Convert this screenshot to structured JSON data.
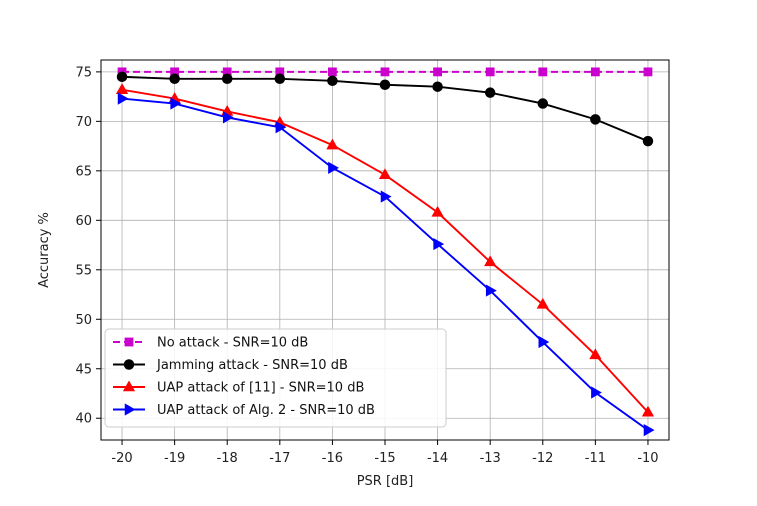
{
  "chart_data": {
    "type": "line",
    "title": "",
    "xlabel": "PSR [dB]",
    "ylabel": "Accuracy %",
    "x": [
      -20,
      -19,
      -18,
      -17,
      -16,
      -15,
      -14,
      -13,
      -12,
      -11,
      -10
    ],
    "xlim": [
      -20.4,
      -9.6
    ],
    "ylim": [
      37.8,
      76.2
    ],
    "xticks": [
      -20,
      -19,
      -18,
      -17,
      -16,
      -15,
      -14,
      -13,
      -12,
      -11,
      -10
    ],
    "xtick_labels": [
      "-20",
      "-19",
      "-18",
      "-17",
      "-16",
      "-15",
      "-14",
      "-13",
      "-12",
      "-11",
      "-10"
    ],
    "yticks": [
      40,
      45,
      50,
      55,
      60,
      65,
      70,
      75
    ],
    "ytick_labels": [
      "40",
      "45",
      "50",
      "55",
      "60",
      "65",
      "70",
      "75"
    ],
    "grid": true,
    "legend_position": "lower-left",
    "series": [
      {
        "name": "No attack - SNR=10 dB",
        "color": "#cc00cc",
        "marker": "square",
        "linestyle": "dashed",
        "values": [
          75.0,
          75.0,
          75.0,
          75.0,
          75.0,
          75.0,
          75.0,
          75.0,
          75.0,
          75.0,
          75.0
        ]
      },
      {
        "name": "Jamming attack - SNR=10 dB",
        "color": "#000000",
        "marker": "circle",
        "linestyle": "solid",
        "values": [
          74.5,
          74.3,
          74.3,
          74.3,
          74.1,
          73.7,
          73.5,
          72.9,
          71.8,
          70.2,
          68.0
        ]
      },
      {
        "name": "UAP attack of [11] - SNR=10 dB",
        "color": "#ff0000",
        "marker": "triangle-up",
        "linestyle": "solid",
        "values": [
          73.2,
          72.3,
          71.0,
          69.9,
          67.6,
          64.6,
          60.8,
          55.8,
          51.5,
          46.4,
          40.6
        ]
      },
      {
        "name": "UAP attack of Alg. 2 - SNR=10 dB",
        "color": "#0000ff",
        "marker": "triangle-right",
        "linestyle": "solid",
        "values": [
          72.3,
          71.8,
          70.4,
          69.4,
          65.3,
          62.4,
          57.6,
          52.9,
          47.7,
          42.6,
          38.8
        ]
      }
    ]
  }
}
